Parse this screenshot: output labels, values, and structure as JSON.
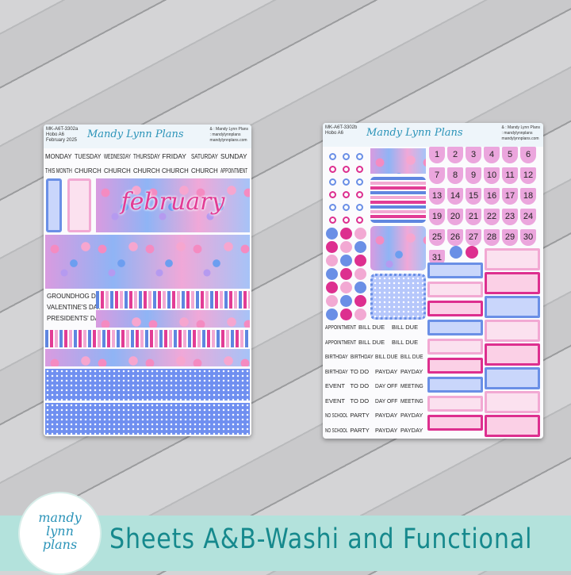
{
  "sheet_a": {
    "code": "MK-A6T-3302a",
    "size": "Hobo A6",
    "month": "February 2025",
    "brand": "Mandy Lynn Plans",
    "social": [
      "& : Mandy Lynn Plans",
      ": mandylynnplans",
      "mandylynnplans.com"
    ],
    "days": [
      "MONDAY",
      "TUESDAY",
      "WEDNESDAY",
      "THURSDAY",
      "FRIDAY",
      "SATURDAY",
      "SUNDAY"
    ],
    "labels": [
      "THIS MONTH",
      "CHURCH",
      "CHURCH",
      "CHURCH",
      "CHURCH",
      "CHURCH",
      "APPOINTMENT"
    ],
    "title": "february",
    "holidays": [
      "GROUNDHOG DAY",
      "VALENTINE'S DAY",
      "PRESIDENTS' DAY"
    ]
  },
  "sheet_b": {
    "code": "MK-A6T-3302b",
    "size": "Hobo A6",
    "brand": "Mandy Lynn Plans",
    "social": [
      "& : Mandy Lynn Plans",
      ": mandylynnplans",
      "mandylynnplans.com"
    ],
    "numbers": [
      "1",
      "2",
      "3",
      "4",
      "5",
      "6",
      "7",
      "8",
      "9",
      "10",
      "11",
      "12",
      "13",
      "14",
      "15",
      "16",
      "17",
      "18",
      "19",
      "20",
      "21",
      "22",
      "23",
      "24",
      "25",
      "26",
      "27",
      "28",
      "29",
      "30",
      "31"
    ],
    "functional": [
      [
        "APPOINTMENT",
        "BILL DUE",
        "BILL DUE"
      ],
      [
        "APPOINTMENT",
        "BILL DUE",
        "BILL DUE"
      ],
      [
        "BIRTHDAY",
        "BIRTHDAY",
        "BILL DUE",
        "BILL DUE"
      ],
      [
        "BIRTHDAY",
        "TO DO",
        "PAYDAY",
        "PAYDAY"
      ],
      [
        "EVENT",
        "TO DO",
        "DAY OFF",
        "MEETING"
      ],
      [
        "EVENT",
        "TO DO",
        "DAY OFF",
        "MEETING"
      ],
      [
        "NO SCHOOL",
        "PARTY",
        "PAYDAY",
        "PAYDAY"
      ],
      [
        "NO SCHOOL",
        "PARTY",
        "PAYDAY",
        "PAYDAY"
      ]
    ]
  },
  "colors": {
    "blue": "#6a8fe6",
    "pink": "#f2a9d3",
    "magenta": "#dd2f8f",
    "teal": "#16898d"
  },
  "banner": {
    "text": "Sheets A&B-Washi and Functional",
    "logo": [
      "mandy",
      "lynn",
      "plans"
    ]
  }
}
